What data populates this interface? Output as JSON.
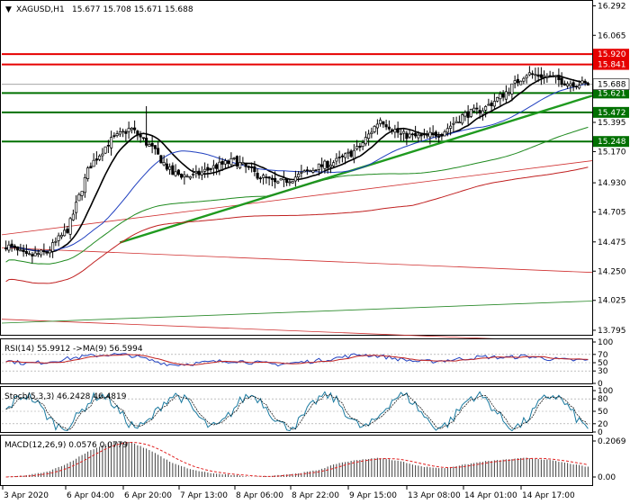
{
  "header": {
    "symbol": "XAGUSD,H1",
    "ohlc": "15.677 15.708 15.671 15.688"
  },
  "chart_data": {
    "type": "candlestick",
    "symbol": "XAGUSD",
    "timeframe": "H1",
    "price_axis": {
      "ticks": [
        "16.292",
        "16.065",
        "15.841",
        "15.620",
        "15.395",
        "15.170",
        "14.930",
        "14.705",
        "14.475",
        "14.250",
        "14.025",
        "13.795"
      ],
      "range": [
        13.76,
        16.33
      ]
    },
    "x_ticks": [
      "3 Apr 2020",
      "6 Apr 04:00",
      "6 Apr 20:00",
      "7 Apr 13:00",
      "8 Apr 06:00",
      "8 Apr 22:00",
      "9 Apr 15:00",
      "13 Apr 08:00",
      "14 Apr 01:00",
      "14 Apr 17:00"
    ],
    "levels": [
      {
        "value": 15.92,
        "label": "15.920",
        "color": "#e60000"
      },
      {
        "value": 15.841,
        "label": "15.841",
        "color": "#e60000"
      },
      {
        "value": 15.621,
        "label": "15.621",
        "color": "#007000"
      },
      {
        "value": 15.472,
        "label": "15.472",
        "color": "#007000"
      },
      {
        "value": 15.248,
        "label": "15.248",
        "color": "#007000"
      }
    ],
    "current_price": {
      "value": 15.688,
      "label": "15.688"
    },
    "anchors": [
      14.45,
      14.36,
      14.4,
      14.58,
      15.05,
      15.25,
      15.35,
      15.2,
      15.0,
      14.98,
      15.05,
      15.1,
      15.0,
      14.92,
      14.98,
      15.05,
      15.1,
      15.2,
      15.42,
      15.3,
      15.28,
      15.32,
      15.45,
      15.5,
      15.62,
      15.77,
      15.75,
      15.7,
      15.688
    ],
    "candle_count": 200,
    "moving_averages": [
      {
        "name": "MA fast",
        "color": "#000000",
        "period": 12
      },
      {
        "name": "MA mid",
        "color": "#1f3fbf",
        "period": 34
      }
    ],
    "trendlines": [
      {
        "name": "uptrend",
        "color": "#1f9a1f",
        "points": [
          [
            0.2,
            14.47
          ],
          [
            1.0,
            15.6
          ]
        ]
      }
    ],
    "rsi": {
      "label": "RSI(14) 55.9912 ->MA(9) 56.5994",
      "ticks": [
        "100",
        "70",
        "50",
        "30",
        "0"
      ],
      "anchors": [
        55,
        48,
        52,
        60,
        66,
        70,
        68,
        55,
        45,
        48,
        52,
        55,
        50,
        46,
        50,
        55,
        62,
        70,
        66,
        58,
        52,
        55,
        60,
        64,
        62,
        66,
        60,
        56,
        56
      ]
    },
    "stoch": {
      "label": "Stoch(5,3,3) 46.2428 46.4819",
      "ticks": [
        "100",
        "80",
        "50",
        "20",
        "0"
      ]
    },
    "macd": {
      "label": "MACD(12,26,9) 0.0576 0.0779",
      "ticks": [
        "0.2069",
        "0.00"
      ],
      "anchors": [
        0.0,
        0.01,
        0.03,
        0.08,
        0.15,
        0.2,
        0.2,
        0.15,
        0.08,
        0.04,
        0.02,
        0.01,
        0.0,
        0.01,
        0.02,
        0.04,
        0.08,
        0.1,
        0.11,
        0.09,
        0.06,
        0.05,
        0.07,
        0.09,
        0.1,
        0.11,
        0.1,
        0.08,
        0.0576
      ]
    }
  }
}
